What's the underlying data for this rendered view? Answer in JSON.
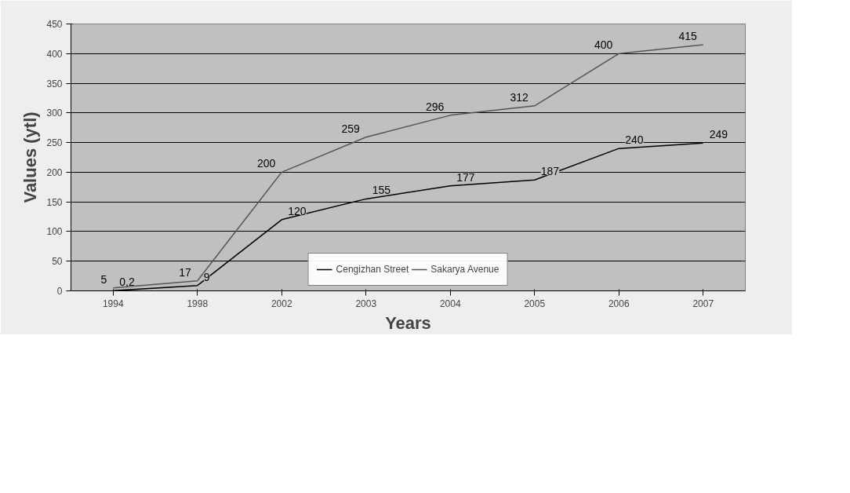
{
  "chart_data": {
    "type": "line",
    "xlabel": "Years",
    "ylabel": "Values (ytl)",
    "categories": [
      "1994",
      "1998",
      "2002",
      "2003",
      "2004",
      "2005",
      "2006",
      "2007"
    ],
    "series": [
      {
        "name": "Cengizhan Street",
        "color": "#000000",
        "values": [
          0.2,
          9,
          120,
          155,
          177,
          187,
          240,
          249
        ],
        "value_labels": [
          "0,2",
          "9",
          "120",
          "155",
          "177",
          "187",
          "240",
          "249"
        ]
      },
      {
        "name": "Sakarya Avenue",
        "color": "#555555",
        "values": [
          5,
          17,
          200,
          259,
          296,
          312,
          400,
          415
        ],
        "value_labels": [
          "5",
          "17",
          "200",
          "259",
          "296",
          "312",
          "400",
          "415"
        ]
      }
    ],
    "ylim": [
      0,
      450
    ],
    "yticks": [
      0,
      50,
      100,
      150,
      200,
      250,
      300,
      350,
      400,
      450
    ],
    "grid": "y",
    "legend": "bottom",
    "marker": "none",
    "line_style": "solid"
  }
}
